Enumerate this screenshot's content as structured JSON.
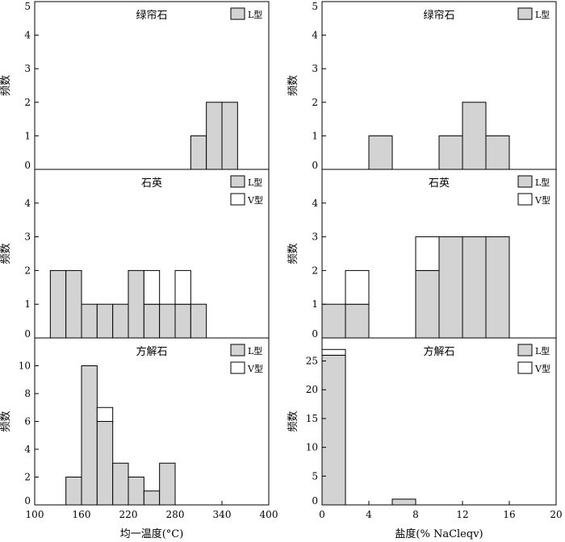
{
  "colors": {
    "L": "#d3d3d3",
    "V": "#ffffff",
    "stroke": "#000000"
  },
  "chart_data": [
    {
      "type": "bar",
      "id": "epidote-temp",
      "title": "绿帘石",
      "ylabel": "频数",
      "xlim": [
        100,
        400
      ],
      "ylim": [
        0,
        5
      ],
      "yticks": [
        0,
        1,
        2,
        3,
        4,
        5
      ],
      "legend": [
        "L型"
      ],
      "bins": [
        {
          "x0": 300,
          "x1": 320,
          "L": 1,
          "V": 0
        },
        {
          "x0": 320,
          "x1": 340,
          "L": 2,
          "V": 0
        },
        {
          "x0": 340,
          "x1": 360,
          "L": 2,
          "V": 0
        }
      ]
    },
    {
      "type": "bar",
      "id": "epidote-salinity",
      "title": "绿帘石",
      "ylabel": "频数",
      "xlim": [
        0,
        20
      ],
      "ylim": [
        0,
        5
      ],
      "yticks": [
        0,
        1,
        2,
        3,
        4,
        5
      ],
      "legend": [
        "L型"
      ],
      "bins": [
        {
          "x0": 4,
          "x1": 6,
          "L": 1,
          "V": 0
        },
        {
          "x0": 10,
          "x1": 12,
          "L": 1,
          "V": 0
        },
        {
          "x0": 12,
          "x1": 14,
          "L": 2,
          "V": 0
        },
        {
          "x0": 14,
          "x1": 16,
          "L": 1,
          "V": 0
        }
      ]
    },
    {
      "type": "bar",
      "id": "quartz-temp",
      "title": "石英",
      "ylabel": "频数",
      "xlim": [
        100,
        400
      ],
      "ylim": [
        0,
        5
      ],
      "yticks": [
        0,
        1,
        2,
        3,
        4
      ],
      "legend": [
        "L型",
        "V型"
      ],
      "bins": [
        {
          "x0": 120,
          "x1": 140,
          "L": 2,
          "V": 0
        },
        {
          "x0": 140,
          "x1": 160,
          "L": 2,
          "V": 0
        },
        {
          "x0": 160,
          "x1": 180,
          "L": 1,
          "V": 0
        },
        {
          "x0": 180,
          "x1": 200,
          "L": 1,
          "V": 0
        },
        {
          "x0": 200,
          "x1": 220,
          "L": 1,
          "V": 0
        },
        {
          "x0": 220,
          "x1": 240,
          "L": 2,
          "V": 0
        },
        {
          "x0": 240,
          "x1": 260,
          "L": 1,
          "V": 1
        },
        {
          "x0": 260,
          "x1": 280,
          "L": 1,
          "V": 0
        },
        {
          "x0": 280,
          "x1": 300,
          "L": 1,
          "V": 1
        },
        {
          "x0": 300,
          "x1": 320,
          "L": 1,
          "V": 0
        }
      ]
    },
    {
      "type": "bar",
      "id": "quartz-salinity",
      "title": "石英",
      "ylabel": "频数",
      "xlim": [
        0,
        20
      ],
      "ylim": [
        0,
        5
      ],
      "yticks": [
        0,
        1,
        2,
        3,
        4
      ],
      "legend": [
        "L型",
        "V型"
      ],
      "bins": [
        {
          "x0": 0,
          "x1": 2,
          "L": 1,
          "V": 0
        },
        {
          "x0": 2,
          "x1": 4,
          "L": 1,
          "V": 1
        },
        {
          "x0": 8,
          "x1": 10,
          "L": 2,
          "V": 1
        },
        {
          "x0": 10,
          "x1": 12,
          "L": 3,
          "V": 0
        },
        {
          "x0": 12,
          "x1": 14,
          "L": 3,
          "V": 0
        },
        {
          "x0": 14,
          "x1": 16,
          "L": 3,
          "V": 0
        }
      ]
    },
    {
      "type": "bar",
      "id": "calcite-temp",
      "title": "方解石",
      "ylabel": "频数",
      "xlabel": "均一温度(°C)",
      "xlim": [
        100,
        400
      ],
      "ylim": [
        0,
        12
      ],
      "yticks": [
        0,
        2,
        4,
        6,
        8,
        10
      ],
      "xticks": [
        100,
        160,
        220,
        280,
        340,
        400
      ],
      "legend": [
        "L型",
        "V型"
      ],
      "bins": [
        {
          "x0": 140,
          "x1": 160,
          "L": 2,
          "V": 0
        },
        {
          "x0": 160,
          "x1": 180,
          "L": 10,
          "V": 0
        },
        {
          "x0": 180,
          "x1": 200,
          "L": 6,
          "V": 1
        },
        {
          "x0": 200,
          "x1": 220,
          "L": 3,
          "V": 0
        },
        {
          "x0": 220,
          "x1": 240,
          "L": 2,
          "V": 0
        },
        {
          "x0": 240,
          "x1": 260,
          "L": 1,
          "V": 0
        },
        {
          "x0": 260,
          "x1": 280,
          "L": 3,
          "V": 0
        }
      ]
    },
    {
      "type": "bar",
      "id": "calcite-salinity",
      "title": "方解石",
      "ylabel": "频数",
      "xlabel": "盐度(% NaCleqv)",
      "xlim": [
        0,
        20
      ],
      "ylim": [
        0,
        29
      ],
      "yticks": [
        0,
        5,
        10,
        15,
        20,
        25
      ],
      "xticks": [
        0,
        4,
        8,
        12,
        16,
        20
      ],
      "legend": [
        "L型",
        "V型"
      ],
      "bins": [
        {
          "x0": 0,
          "x1": 2,
          "L": 26,
          "V": 1
        },
        {
          "x0": 6,
          "x1": 8,
          "L": 1,
          "V": 0
        }
      ]
    }
  ]
}
